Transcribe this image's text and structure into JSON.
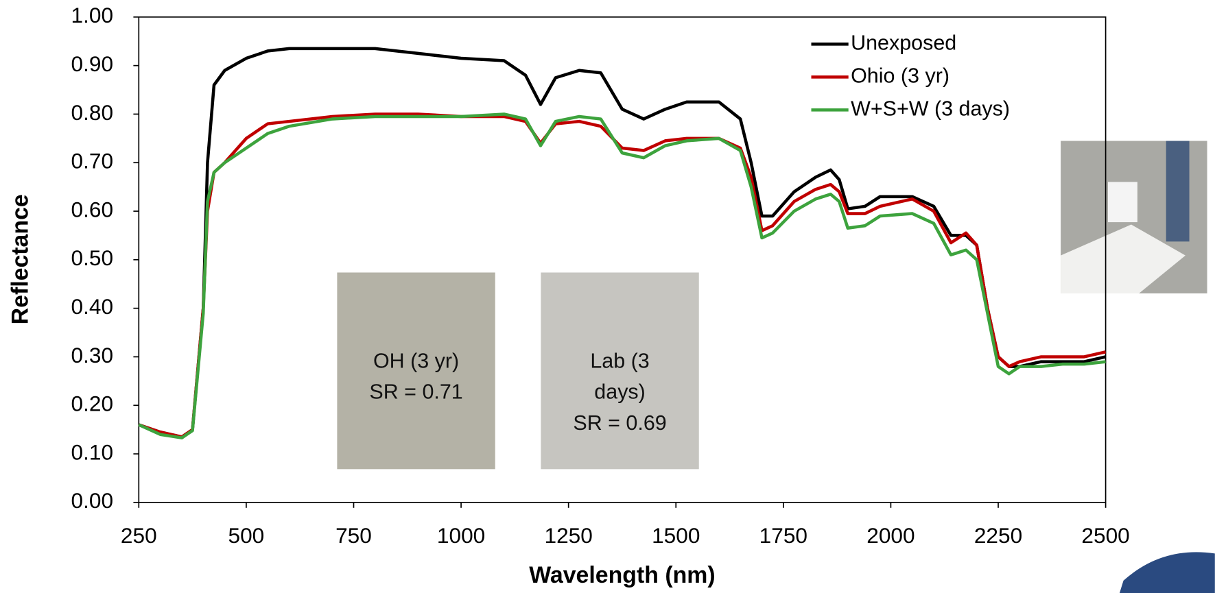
{
  "chart_data": {
    "type": "line",
    "x_label": "Wavelength (nm)",
    "y_label": "Reflectance",
    "x": [
      250,
      300,
      350,
      375,
      400,
      410,
      425,
      450,
      500,
      550,
      600,
      700,
      800,
      900,
      1000,
      1100,
      1150,
      1185,
      1220,
      1275,
      1325,
      1375,
      1425,
      1475,
      1525,
      1600,
      1650,
      1675,
      1700,
      1725,
      1775,
      1825,
      1860,
      1880,
      1900,
      1940,
      1975,
      2050,
      2100,
      2140,
      2175,
      2200,
      2225,
      2250,
      2275,
      2300,
      2350,
      2400,
      2450,
      2500
    ],
    "series": [
      {
        "name": "Unexposed",
        "color": "#000000",
        "values": [
          0.16,
          0.145,
          0.135,
          0.15,
          0.4,
          0.7,
          0.86,
          0.89,
          0.915,
          0.93,
          0.935,
          0.935,
          0.935,
          0.925,
          0.915,
          0.91,
          0.88,
          0.82,
          0.875,
          0.89,
          0.885,
          0.81,
          0.79,
          0.81,
          0.825,
          0.825,
          0.79,
          0.7,
          0.59,
          0.59,
          0.64,
          0.67,
          0.685,
          0.665,
          0.605,
          0.61,
          0.63,
          0.63,
          0.61,
          0.55,
          0.55,
          0.53,
          0.4,
          0.3,
          0.28,
          0.28,
          0.29,
          0.29,
          0.29,
          0.3
        ]
      },
      {
        "name": "Ohio (3 yr)",
        "color": "#c00000",
        "values": [
          0.16,
          0.145,
          0.135,
          0.15,
          0.4,
          0.6,
          0.68,
          0.7,
          0.75,
          0.78,
          0.785,
          0.795,
          0.8,
          0.8,
          0.795,
          0.795,
          0.785,
          0.74,
          0.78,
          0.785,
          0.775,
          0.73,
          0.725,
          0.745,
          0.75,
          0.75,
          0.73,
          0.67,
          0.56,
          0.57,
          0.62,
          0.645,
          0.655,
          0.64,
          0.595,
          0.595,
          0.61,
          0.625,
          0.6,
          0.535,
          0.555,
          0.53,
          0.4,
          0.3,
          0.28,
          0.29,
          0.3,
          0.3,
          0.3,
          0.31
        ]
      },
      {
        "name": "W+S+W (3 days)",
        "color": "#3da33d",
        "values": [
          0.16,
          0.14,
          0.133,
          0.148,
          0.39,
          0.62,
          0.68,
          0.7,
          0.73,
          0.76,
          0.775,
          0.79,
          0.795,
          0.795,
          0.795,
          0.8,
          0.79,
          0.735,
          0.785,
          0.795,
          0.79,
          0.72,
          0.71,
          0.735,
          0.745,
          0.75,
          0.725,
          0.65,
          0.545,
          0.555,
          0.6,
          0.625,
          0.635,
          0.62,
          0.565,
          0.57,
          0.59,
          0.595,
          0.575,
          0.51,
          0.52,
          0.5,
          0.39,
          0.28,
          0.265,
          0.28,
          0.28,
          0.285,
          0.285,
          0.29
        ]
      }
    ],
    "xlim": [
      250,
      2500
    ],
    "xticks": [
      250,
      500,
      750,
      1000,
      1250,
      1500,
      1750,
      2000,
      2250,
      2500
    ],
    "ylim": [
      0,
      1
    ],
    "yticks": [
      {
        "value": 0,
        "label": "0.00"
      },
      {
        "value": 0.1,
        "label": "0.10"
      },
      {
        "value": 0.2,
        "label": "0.20"
      },
      {
        "value": 0.3,
        "label": "0.30"
      },
      {
        "value": 0.4,
        "label": "0.40"
      },
      {
        "value": 0.5,
        "label": "0.50"
      },
      {
        "value": 0.6,
        "label": "0.60"
      },
      {
        "value": 0.7,
        "label": "0.70"
      },
      {
        "value": 0.8,
        "label": "0.80"
      },
      {
        "value": 0.9,
        "label": "0.90"
      },
      {
        "value": 1,
        "label": "1.00"
      }
    ],
    "legend": "top-right",
    "annotations": [
      [
        "OH (3 yr)",
        "SR = 0.71"
      ],
      [
        "Lab (3",
        "days)",
        "SR = 0.69"
      ]
    ]
  }
}
